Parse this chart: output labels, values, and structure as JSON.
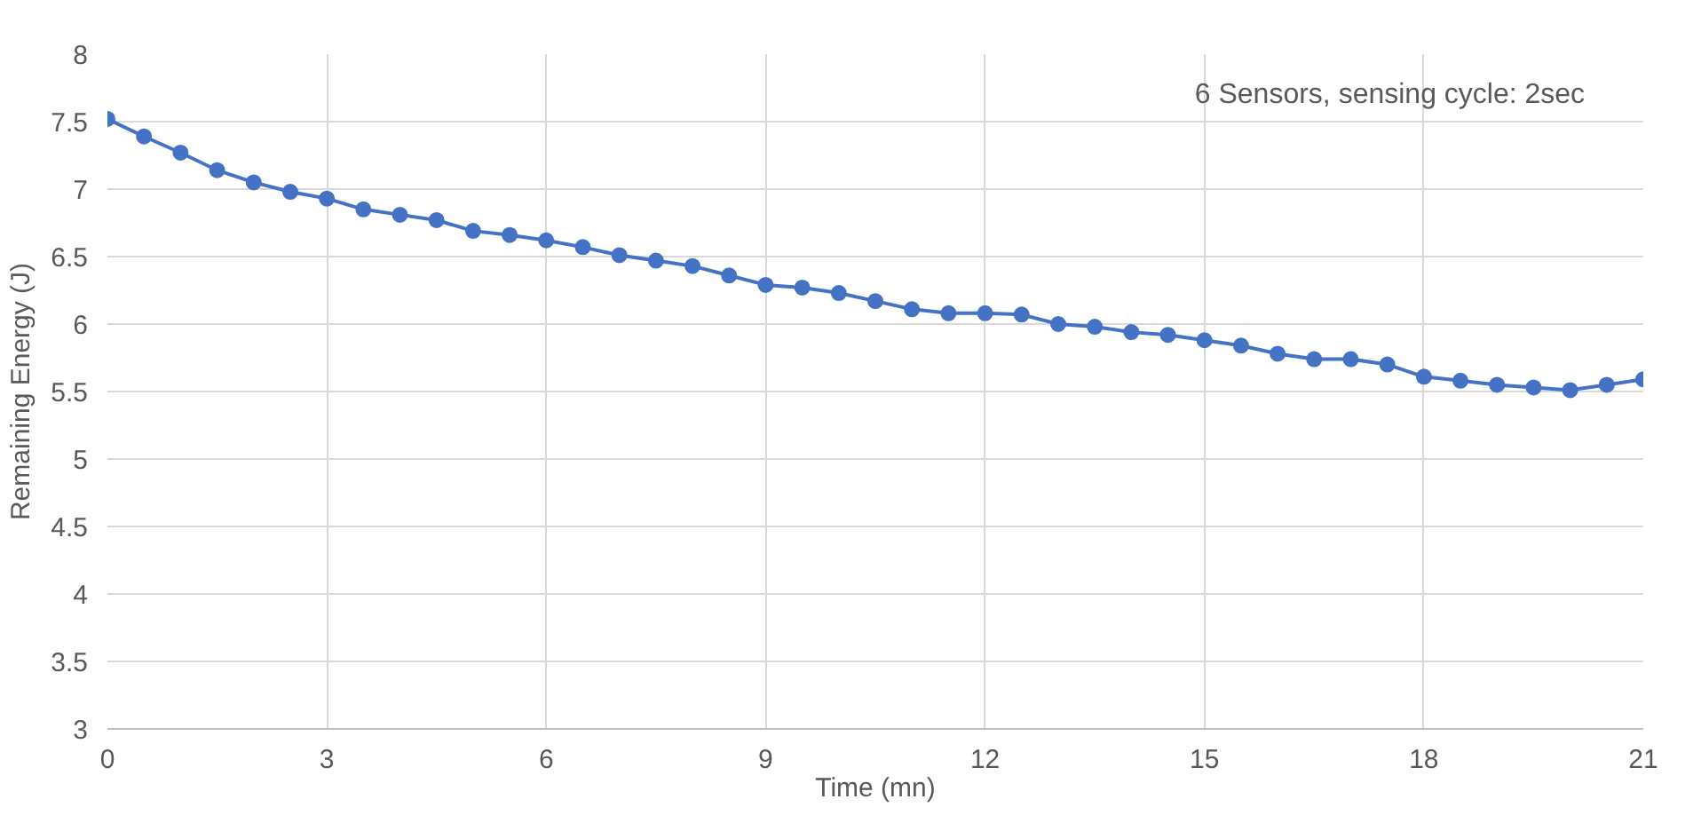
{
  "chart_data": {
    "type": "line",
    "xlabel": "Time (mn)",
    "ylabel": "Remaining Energy (J)",
    "annotations": [
      "6 Sensors, sensing cycle: 2sec"
    ],
    "x": [
      0,
      0.5,
      1,
      1.5,
      2,
      2.5,
      3,
      3.5,
      4,
      4.5,
      5,
      5.5,
      6,
      6.5,
      7,
      7.5,
      8,
      8.5,
      9,
      9.5,
      10,
      10.5,
      11,
      11.5,
      12,
      12.5,
      13,
      13.5,
      14,
      14.5,
      15,
      15.5,
      16,
      16.5,
      17,
      17.5,
      18,
      18.5,
      19,
      19.5,
      20,
      20.5,
      21
    ],
    "series": [
      {
        "color": "#4472c4",
        "values": [
          7.52,
          7.39,
          7.27,
          7.14,
          7.05,
          6.98,
          6.93,
          6.85,
          6.81,
          6.77,
          6.69,
          6.66,
          6.62,
          6.57,
          6.51,
          6.47,
          6.43,
          6.36,
          6.29,
          6.27,
          6.23,
          6.17,
          6.11,
          6.08,
          6.08,
          6.07,
          6.0,
          5.98,
          5.94,
          5.92,
          5.88,
          5.84,
          5.78,
          5.74,
          5.74,
          5.7,
          5.61,
          5.58,
          5.55,
          5.53,
          5.51,
          5.55,
          5.59
        ]
      }
    ],
    "xlim": [
      0,
      21
    ],
    "xticks": [
      0,
      3,
      6,
      9,
      12,
      15,
      18,
      21
    ],
    "ylim": [
      3,
      8
    ],
    "yticks": [
      3,
      3.5,
      4,
      4.5,
      5,
      5.5,
      6,
      6.5,
      7,
      7.5,
      8
    ],
    "grid": true,
    "marker": "circle",
    "line_style": "solid"
  }
}
